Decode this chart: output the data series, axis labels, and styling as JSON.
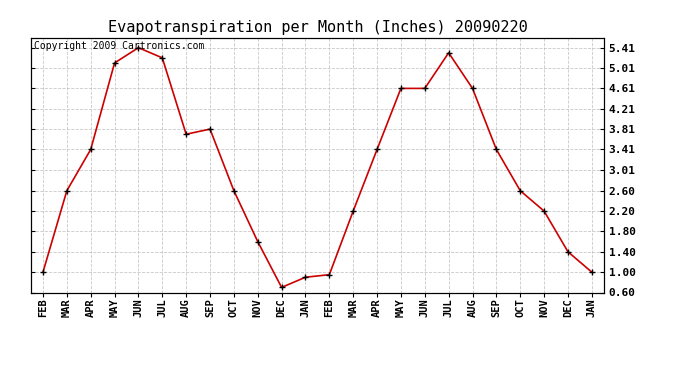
{
  "title": "Evapotranspiration per Month (Inches) 20090220",
  "copyright_text": "Copyright 2009 Cartronics.com",
  "months": [
    "FEB",
    "MAR",
    "APR",
    "MAY",
    "JUN",
    "JUL",
    "AUG",
    "SEP",
    "OCT",
    "NOV",
    "DEC",
    "JAN",
    "FEB",
    "MAR",
    "APR",
    "MAY",
    "JUN",
    "JUL",
    "AUG",
    "SEP",
    "OCT",
    "NOV",
    "DEC",
    "JAN"
  ],
  "values": [
    1.0,
    2.6,
    3.41,
    5.11,
    5.41,
    5.21,
    3.71,
    3.81,
    2.6,
    1.6,
    0.7,
    0.9,
    0.95,
    2.2,
    3.41,
    4.61,
    4.61,
    5.31,
    4.61,
    3.41,
    2.6,
    2.2,
    1.4,
    1.0
  ],
  "yticks": [
    0.6,
    1.0,
    1.4,
    1.8,
    2.2,
    2.6,
    3.01,
    3.41,
    3.81,
    4.21,
    4.61,
    5.01,
    5.41
  ],
  "ymin": 0.6,
  "ymax": 5.61,
  "line_color": "#cc0000",
  "bg_color": "#ffffff",
  "grid_color": "#bbbbbb",
  "title_fontsize": 11,
  "copyright_fontsize": 7
}
